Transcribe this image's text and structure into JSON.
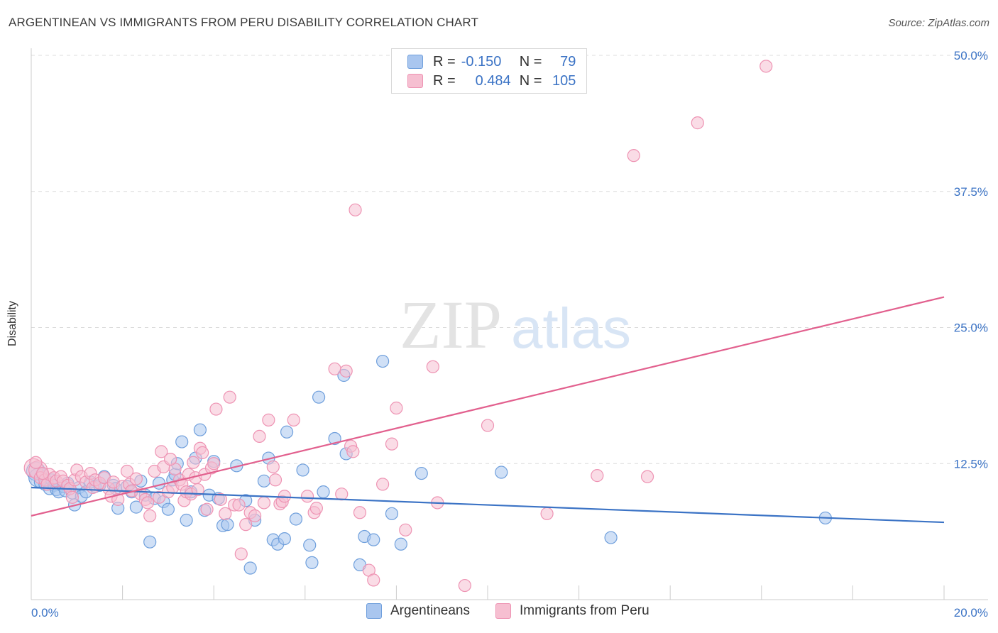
{
  "title": "ARGENTINEAN VS IMMIGRANTS FROM PERU DISABILITY CORRELATION CHART",
  "source": "Source: ZipAtlas.com",
  "watermark": {
    "zip": "ZIP",
    "atlas": "atlas"
  },
  "legend": {
    "rows": [
      {
        "r_label": "R =",
        "r_value": "-0.150",
        "n_label": "N =",
        "n_value": "79"
      },
      {
        "r_label": "R =",
        "r_value": "0.484",
        "n_label": "N =",
        "n_value": "105"
      }
    ]
  },
  "colors": {
    "blue": "#3b73c5",
    "blue_fill": "#a9c6ef",
    "blue_stroke": "#6f9fdc",
    "pink": "#e2608e",
    "pink_fill": "#f6bfd1",
    "pink_stroke": "#ee93b3",
    "grid": "#dcdcdc",
    "axis": "#cccccc",
    "tick_text": "#3b73c5"
  },
  "chart_data": {
    "type": "scatter",
    "title": "ARGENTINEAN VS IMMIGRANTS FROM PERU DISABILITY CORRELATION CHART",
    "xlabel": "",
    "ylabel": "Disability",
    "xlim": [
      0,
      20
    ],
    "ylim": [
      0,
      50
    ],
    "x_tick_labels": [
      "0.0%",
      "20.0%"
    ],
    "y_ticks": [
      12.5,
      25.0,
      37.5,
      50.0
    ],
    "y_tick_labels": [
      "12.5%",
      "25.0%",
      "37.5%",
      "50.0%"
    ],
    "grid": true,
    "legend_position": "top-center",
    "series": [
      {
        "name": "Argentineans",
        "color": "#3b73c5",
        "r": -0.15,
        "n": 79,
        "trend": {
          "x": [
            0,
            20
          ],
          "y": [
            10.3,
            7.1
          ]
        },
        "points": [
          [
            0.1,
            11.8
          ],
          [
            0.15,
            11.2
          ],
          [
            0.2,
            10.8
          ],
          [
            0.25,
            11.5
          ],
          [
            0.3,
            10.6
          ],
          [
            0.35,
            10.9
          ],
          [
            0.4,
            10.2
          ],
          [
            0.45,
            11.0
          ],
          [
            0.5,
            10.5
          ],
          [
            0.55,
            10.1
          ],
          [
            0.6,
            9.9
          ],
          [
            0.7,
            10.4
          ],
          [
            0.75,
            10.0
          ],
          [
            0.8,
            10.7
          ],
          [
            0.9,
            9.8
          ],
          [
            0.95,
            8.7
          ],
          [
            1.05,
            10.3
          ],
          [
            1.1,
            9.5
          ],
          [
            1.2,
            9.9
          ],
          [
            1.3,
            10.8
          ],
          [
            1.4,
            10.4
          ],
          [
            1.5,
            10.5
          ],
          [
            1.6,
            11.3
          ],
          [
            1.8,
            10.5
          ],
          [
            1.85,
            10.2
          ],
          [
            1.9,
            8.4
          ],
          [
            2.1,
            10.4
          ],
          [
            2.2,
            9.9
          ],
          [
            2.3,
            8.5
          ],
          [
            2.4,
            10.9
          ],
          [
            2.5,
            9.6
          ],
          [
            2.6,
            5.3
          ],
          [
            2.7,
            9.3
          ],
          [
            2.8,
            10.7
          ],
          [
            2.9,
            9.0
          ],
          [
            3.0,
            8.3
          ],
          [
            3.1,
            11.0
          ],
          [
            3.15,
            11.5
          ],
          [
            3.2,
            12.5
          ],
          [
            3.3,
            14.5
          ],
          [
            3.4,
            7.3
          ],
          [
            3.5,
            9.9
          ],
          [
            3.6,
            13.0
          ],
          [
            3.7,
            15.6
          ],
          [
            3.8,
            8.2
          ],
          [
            3.9,
            9.6
          ],
          [
            4.0,
            12.7
          ],
          [
            4.1,
            9.3
          ],
          [
            4.2,
            6.8
          ],
          [
            4.3,
            6.9
          ],
          [
            4.5,
            12.3
          ],
          [
            4.7,
            9.1
          ],
          [
            4.8,
            2.9
          ],
          [
            4.9,
            7.3
          ],
          [
            5.1,
            10.9
          ],
          [
            5.2,
            13.0
          ],
          [
            5.3,
            5.5
          ],
          [
            5.4,
            5.1
          ],
          [
            5.55,
            5.6
          ],
          [
            5.6,
            15.4
          ],
          [
            5.8,
            7.4
          ],
          [
            5.95,
            11.9
          ],
          [
            6.1,
            5.0
          ],
          [
            6.15,
            3.4
          ],
          [
            6.3,
            18.6
          ],
          [
            6.4,
            9.9
          ],
          [
            6.65,
            14.8
          ],
          [
            6.85,
            20.6
          ],
          [
            6.9,
            13.4
          ],
          [
            7.2,
            3.2
          ],
          [
            7.3,
            5.8
          ],
          [
            7.5,
            5.5
          ],
          [
            7.7,
            21.9
          ],
          [
            7.9,
            7.9
          ],
          [
            8.1,
            5.1
          ],
          [
            8.55,
            11.6
          ],
          [
            10.3,
            11.7
          ],
          [
            12.7,
            5.7
          ],
          [
            17.4,
            7.5
          ]
        ]
      },
      {
        "name": "Immigrants from Peru",
        "color": "#e2608e",
        "r": 0.484,
        "n": 105,
        "trend": {
          "x": [
            0,
            20
          ],
          "y": [
            7.7,
            27.8
          ]
        },
        "points": [
          [
            0.05,
            12.1
          ],
          [
            0.15,
            11.9
          ],
          [
            0.2,
            11.2
          ],
          [
            0.3,
            11.0
          ],
          [
            0.35,
            10.6
          ],
          [
            0.4,
            11.5
          ],
          [
            0.5,
            11.2
          ],
          [
            0.55,
            10.9
          ],
          [
            0.65,
            11.3
          ],
          [
            0.7,
            10.9
          ],
          [
            0.8,
            10.5
          ],
          [
            0.85,
            10.2
          ],
          [
            0.9,
            9.4
          ],
          [
            0.95,
            11.0
          ],
          [
            1.0,
            11.9
          ],
          [
            1.1,
            11.3
          ],
          [
            1.2,
            10.8
          ],
          [
            1.3,
            11.6
          ],
          [
            1.35,
            10.3
          ],
          [
            1.4,
            11.0
          ],
          [
            1.5,
            10.7
          ],
          [
            1.6,
            11.2
          ],
          [
            1.7,
            10.2
          ],
          [
            1.75,
            9.5
          ],
          [
            1.8,
            10.8
          ],
          [
            1.9,
            9.2
          ],
          [
            2.0,
            10.4
          ],
          [
            2.1,
            11.8
          ],
          [
            2.15,
            10.6
          ],
          [
            2.2,
            10.0
          ],
          [
            2.3,
            11.1
          ],
          [
            2.4,
            9.7
          ],
          [
            2.5,
            9.2
          ],
          [
            2.55,
            8.9
          ],
          [
            2.6,
            7.7
          ],
          [
            2.7,
            11.8
          ],
          [
            2.8,
            9.4
          ],
          [
            2.85,
            13.6
          ],
          [
            2.9,
            12.2
          ],
          [
            3.0,
            9.9
          ],
          [
            3.1,
            10.3
          ],
          [
            3.15,
            12.0
          ],
          [
            3.25,
            11.0
          ],
          [
            3.3,
            10.6
          ],
          [
            3.35,
            9.1
          ],
          [
            3.4,
            9.9
          ],
          [
            3.45,
            11.5
          ],
          [
            3.5,
            9.7
          ],
          [
            3.55,
            12.6
          ],
          [
            3.6,
            11.2
          ],
          [
            3.65,
            10.1
          ],
          [
            3.7,
            13.9
          ],
          [
            3.75,
            13.5
          ],
          [
            3.8,
            11.5
          ],
          [
            3.85,
            8.3
          ],
          [
            3.95,
            12.1
          ],
          [
            4.0,
            12.5
          ],
          [
            4.05,
            17.5
          ],
          [
            4.15,
            9.2
          ],
          [
            4.25,
            7.9
          ],
          [
            4.35,
            18.6
          ],
          [
            4.45,
            8.7
          ],
          [
            4.55,
            8.7
          ],
          [
            4.6,
            4.2
          ],
          [
            4.7,
            6.9
          ],
          [
            4.8,
            8.0
          ],
          [
            4.9,
            7.7
          ],
          [
            5.0,
            15.0
          ],
          [
            5.1,
            8.9
          ],
          [
            5.2,
            16.5
          ],
          [
            5.3,
            12.2
          ],
          [
            5.35,
            11.0
          ],
          [
            5.45,
            8.8
          ],
          [
            5.5,
            9.0
          ],
          [
            5.55,
            9.5
          ],
          [
            5.75,
            16.5
          ],
          [
            6.05,
            9.5
          ],
          [
            6.2,
            8.0
          ],
          [
            6.25,
            8.4
          ],
          [
            6.65,
            21.2
          ],
          [
            6.8,
            9.7
          ],
          [
            6.9,
            21.0
          ],
          [
            7.0,
            14.1
          ],
          [
            7.05,
            13.6
          ],
          [
            7.1,
            35.8
          ],
          [
            7.2,
            8.0
          ],
          [
            7.4,
            2.7
          ],
          [
            7.5,
            1.8
          ],
          [
            7.7,
            10.6
          ],
          [
            7.9,
            14.3
          ],
          [
            8.0,
            17.6
          ],
          [
            8.2,
            6.4
          ],
          [
            8.8,
            21.4
          ],
          [
            8.9,
            8.9
          ],
          [
            9.5,
            1.3
          ],
          [
            10.0,
            16.0
          ],
          [
            11.3,
            7.9
          ],
          [
            12.4,
            11.4
          ],
          [
            13.2,
            40.8
          ],
          [
            13.5,
            11.3
          ],
          [
            14.6,
            43.8
          ],
          [
            16.1,
            49.0
          ],
          [
            0.1,
            12.6
          ],
          [
            0.25,
            11.6
          ],
          [
            3.05,
            12.9
          ]
        ]
      }
    ]
  }
}
